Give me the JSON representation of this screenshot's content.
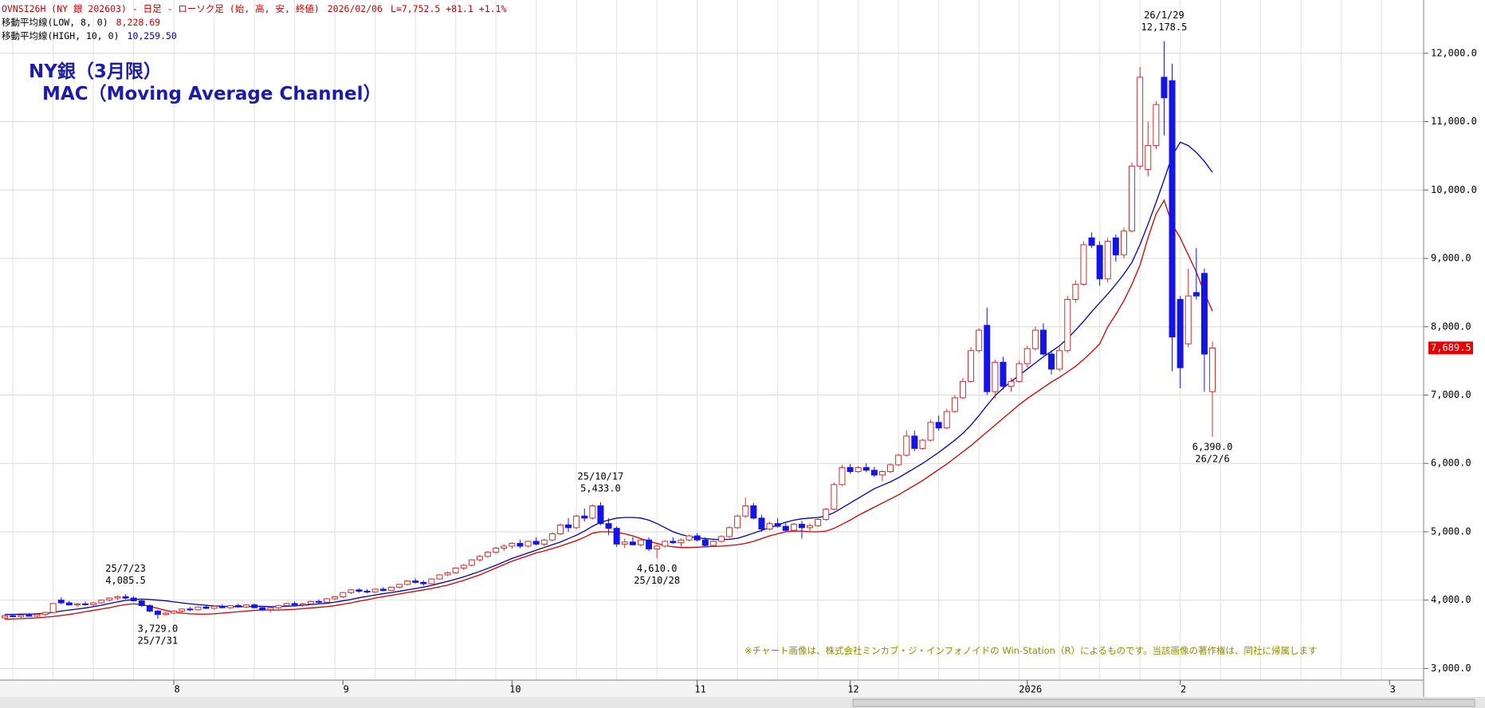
{
  "header": {
    "code": "OVNSI26H (NY 銀 202603) - 日足 - ローソク足 (始, 高, 安, 終値)",
    "date": "2026/02/06",
    "last": "L=7,752.5 +81.1 +1.1%"
  },
  "chart_data": {
    "type": "candlestick",
    "title": "NY銀（3月限）",
    "subtitle": "MAC（Moving Average Channel）",
    "note": "※チャート画像は、株式会社ミンカブ・ジ・インフォノイドの Win-Station（R）によるものです。当該画像の著作権は、同社に帰属します",
    "up_color": "#c83232",
    "down_color": "#1414e6",
    "grid": true,
    "ylim": [
      2830,
      12780
    ],
    "yticks": [
      {
        "value": 3000,
        "label": "3,000.0"
      },
      {
        "value": 4000,
        "label": "4,000.0"
      },
      {
        "value": 5000,
        "label": "5,000.0"
      },
      {
        "value": 6000,
        "label": "6,000.0"
      },
      {
        "value": 7000,
        "label": "7,000.0"
      },
      {
        "value": 8000,
        "label": "8,000.0"
      },
      {
        "value": 9000,
        "label": "9,000.0"
      },
      {
        "value": 10000,
        "label": "10,000.0"
      },
      {
        "value": 11000,
        "label": "11,000.0"
      },
      {
        "value": 12000,
        "label": "12,000.0"
      }
    ],
    "last_price_label": "7,689.5",
    "categories": [
      null,
      null,
      null,
      null,
      null,
      null,
      null,
      null,
      null,
      null,
      null,
      null,
      null,
      null,
      null,
      null,
      null,
      null,
      null,
      null,
      null,
      "8",
      null,
      null,
      null,
      null,
      null,
      null,
      null,
      null,
      null,
      null,
      null,
      null,
      null,
      null,
      null,
      null,
      null,
      null,
      null,
      null,
      "9",
      null,
      null,
      null,
      null,
      null,
      null,
      null,
      null,
      null,
      null,
      null,
      null,
      null,
      null,
      null,
      null,
      null,
      null,
      null,
      null,
      "10",
      null,
      null,
      null,
      null,
      null,
      null,
      null,
      null,
      null,
      null,
      null,
      null,
      null,
      null,
      null,
      null,
      null,
      null,
      null,
      null,
      null,
      null,
      "11",
      null,
      null,
      null,
      null,
      null,
      null,
      null,
      null,
      null,
      null,
      null,
      null,
      null,
      null,
      null,
      null,
      null,
      null,
      "12",
      null,
      null,
      null,
      null,
      null,
      null,
      null,
      null,
      null,
      null,
      null,
      null,
      null,
      null,
      null,
      null,
      null,
      null,
      null,
      null,
      null,
      "2026",
      null,
      null,
      null,
      null,
      null,
      null,
      null,
      null,
      null,
      null,
      null,
      null,
      null,
      null,
      null,
      null,
      null,
      null,
      "2",
      null,
      null,
      null,
      null,
      null,
      null,
      null,
      null,
      null,
      null,
      null,
      null,
      null,
      null,
      null,
      null,
      null,
      null,
      null,
      null,
      null,
      null,
      null,
      null,
      null,
      "3"
    ],
    "open": [
      3740,
      3770,
      3760,
      3780,
      3765,
      3790,
      3820,
      4000,
      3960,
      3930,
      3945,
      3935,
      3960,
      4000,
      4030,
      4050,
      4030,
      3990,
      3920,
      3840,
      3790,
      3810,
      3840,
      3870,
      3860,
      3900,
      3880,
      3910,
      3890,
      3920,
      3900,
      3930,
      3890,
      3860,
      3890,
      3920,
      3950,
      3930,
      3945,
      3980,
      3970,
      4020,
      4050,
      4110,
      4150,
      4130,
      4120,
      4160,
      4140,
      4190,
      4230,
      4280,
      4260,
      4240,
      4310,
      4370,
      4400,
      4470,
      4510,
      4590,
      4640,
      4700,
      4760,
      4790,
      4830,
      4790,
      4860,
      4820,
      4880,
      4970,
      5100,
      5060,
      5230,
      5200,
      5380,
      5120,
      5050,
      4820,
      4850,
      4810,
      4880,
      4750,
      4790,
      4860,
      4840,
      4880,
      4940,
      4880,
      4800,
      4860,
      4930,
      5060,
      5230,
      5380,
      5200,
      5040,
      5120,
      5080,
      5020,
      5110,
      5060,
      5090,
      5180,
      5330,
      5690,
      5940,
      5880,
      5940,
      5900,
      5830,
      5880,
      5980,
      6120,
      6400,
      6220,
      6340,
      6600,
      6520,
      6760,
      6960,
      7200,
      7650,
      8020,
      7050,
      7480,
      7130,
      7200,
      7460,
      7680,
      7950,
      7600,
      7380,
      7650,
      8400,
      8620,
      9300,
      9190,
      8700,
      9300,
      9050,
      9400,
      10350,
      10300,
      10650,
      11650,
      11600,
      8400,
      7750,
      8500,
      8780,
      7050,
      null,
      null,
      null,
      null,
      null,
      null,
      null,
      null,
      null,
      null,
      null,
      null,
      null,
      null,
      null,
      null,
      null,
      null,
      null,
      null,
      null,
      null
    ],
    "high": [
      3790,
      3800,
      3790,
      3810,
      3800,
      3830,
      3960,
      4040,
      3990,
      3960,
      3980,
      3970,
      4010,
      4040,
      4070,
      4085.5,
      4060,
      4010,
      3940,
      3860,
      3830,
      3850,
      3880,
      3900,
      3910,
      3930,
      3920,
      3940,
      3930,
      3950,
      3940,
      3950,
      3910,
      3900,
      3930,
      3960,
      3980,
      3960,
      3990,
      4010,
      4030,
      4060,
      4120,
      4160,
      4170,
      4160,
      4170,
      4190,
      4200,
      4240,
      4290,
      4320,
      4290,
      4320,
      4380,
      4420,
      4480,
      4530,
      4600,
      4660,
      4720,
      4780,
      4820,
      4850,
      4880,
      4870,
      4920,
      4900,
      4990,
      5120,
      5200,
      5250,
      5340,
      5400,
      5433,
      5200,
      5080,
      4900,
      4920,
      4900,
      4920,
      4820,
      4880,
      4920,
      4900,
      4960,
      4980,
      4920,
      4880,
      4950,
      5080,
      5250,
      5500,
      5420,
      5250,
      5150,
      5200,
      5140,
      5130,
      5160,
      5120,
      5200,
      5350,
      5720,
      5980,
      5990,
      5960,
      6000,
      5950,
      5900,
      6000,
      6140,
      6480,
      6480,
      6360,
      6640,
      6700,
      6800,
      7000,
      7250,
      7700,
      7980,
      8280,
      7520,
      7560,
      7250,
      7500,
      7720,
      8000,
      8050,
      7650,
      7700,
      8450,
      8680,
      9250,
      9380,
      9250,
      9300,
      9350,
      9450,
      10400,
      11800,
      11000,
      11300,
      12178.5,
      11850,
      8450,
      8850,
      9150,
      8850,
      7780,
      null,
      null,
      null,
      null,
      null,
      null,
      null,
      null,
      null,
      null,
      null,
      null,
      null,
      null,
      null,
      null,
      null,
      null,
      null,
      null,
      null,
      null
    ],
    "low": [
      3720,
      3750,
      3740,
      3760,
      3750,
      3770,
      3810,
      3940,
      3920,
      3900,
      3920,
      3915,
      3950,
      3980,
      4000,
      4010,
      3980,
      3900,
      3820,
      3729,
      3770,
      3790,
      3820,
      3840,
      3850,
      3870,
      3860,
      3880,
      3870,
      3890,
      3880,
      3880,
      3840,
      3820,
      3870,
      3900,
      3920,
      3900,
      3930,
      3950,
      3960,
      4000,
      4030,
      4090,
      4110,
      4100,
      4110,
      4130,
      4130,
      4170,
      4220,
      4240,
      4210,
      4230,
      4300,
      4350,
      4390,
      4440,
      4490,
      4560,
      4620,
      4680,
      4720,
      4750,
      4760,
      4770,
      4800,
      4790,
      4860,
      4950,
      5000,
      5040,
      5150,
      5180,
      5100,
      4950,
      4780,
      4760,
      4800,
      4780,
      4720,
      4610,
      4770,
      4820,
      4790,
      4860,
      4860,
      4780,
      4780,
      4840,
      4910,
      5040,
      5200,
      5180,
      5000,
      5020,
      5060,
      5000,
      5000,
      4900,
      5010,
      5070,
      5160,
      5310,
      5670,
      5850,
      5860,
      5870,
      5800,
      5740,
      5860,
      5960,
      6100,
      6180,
      6200,
      6320,
      6480,
      6500,
      6740,
      6940,
      7180,
      7620,
      7000,
      6950,
      7080,
      7050,
      7180,
      7400,
      7650,
      7580,
      7300,
      7350,
      7620,
      8350,
      8600,
      9150,
      8600,
      8650,
      8950,
      9000,
      9380,
      10300,
      10200,
      10600,
      10800,
      7350,
      7100,
      7700,
      8400,
      7050,
      6390,
      null,
      null,
      null,
      null,
      null,
      null,
      null,
      null,
      null,
      null,
      null,
      null,
      null,
      null,
      null,
      null,
      null,
      null,
      null,
      null,
      null,
      null
    ],
    "close": [
      3770,
      3760,
      3780,
      3765,
      3790,
      3820,
      3950,
      3960,
      3930,
      3945,
      3935,
      3960,
      4000,
      4030,
      4050,
      4030,
      3990,
      3920,
      3840,
      3790,
      3810,
      3840,
      3870,
      3860,
      3900,
      3880,
      3910,
      3890,
      3920,
      3900,
      3930,
      3890,
      3860,
      3890,
      3920,
      3950,
      3930,
      3945,
      3980,
      3970,
      4020,
      4050,
      4110,
      4150,
      4130,
      4120,
      4160,
      4140,
      4190,
      4230,
      4280,
      4260,
      4240,
      4310,
      4370,
      4400,
      4470,
      4510,
      4590,
      4640,
      4700,
      4760,
      4790,
      4830,
      4790,
      4860,
      4820,
      4880,
      4970,
      5100,
      5060,
      5230,
      5200,
      5380,
      5120,
      5050,
      4820,
      4850,
      4810,
      4880,
      4750,
      4790,
      4860,
      4840,
      4880,
      4940,
      4880,
      4800,
      4860,
      4930,
      5060,
      5230,
      5380,
      5200,
      5040,
      5120,
      5080,
      5020,
      5110,
      5060,
      5090,
      5180,
      5330,
      5690,
      5940,
      5880,
      5940,
      5900,
      5830,
      5880,
      5980,
      6120,
      6400,
      6220,
      6340,
      6600,
      6520,
      6760,
      6960,
      7200,
      7650,
      7950,
      7050,
      7480,
      7130,
      7200,
      7460,
      7680,
      7950,
      7600,
      7380,
      7650,
      8400,
      8620,
      9200,
      9190,
      8700,
      9250,
      9050,
      9400,
      10350,
      11650,
      10650,
      11250,
      11350,
      7850,
      7400,
      8450,
      8450,
      7600,
      7689.5,
      null,
      null,
      null,
      null,
      null,
      null,
      null,
      null,
      null,
      null,
      null,
      null,
      null,
      null,
      null,
      null,
      null,
      null,
      null,
      null,
      null,
      null
    ],
    "series": [
      {
        "name": "移動平均線(LOW, 8, 0)",
        "color": "#cc0000",
        "last_value_label": "8,228.69",
        "values": [
          3720,
          3725,
          3730,
          3735,
          3740,
          3750,
          3760,
          3775,
          3790,
          3810,
          3830,
          3850,
          3870,
          3890,
          3915,
          3935,
          3945,
          3935,
          3910,
          3880,
          3850,
          3825,
          3810,
          3800,
          3795,
          3795,
          3800,
          3810,
          3820,
          3830,
          3840,
          3850,
          3855,
          3855,
          3855,
          3860,
          3865,
          3875,
          3885,
          3895,
          3905,
          3920,
          3940,
          3960,
          3985,
          4005,
          4030,
          4050,
          4070,
          4090,
          4110,
          4130,
          4150,
          4170,
          4195,
          4220,
          4255,
          4290,
          4330,
          4370,
          4420,
          4470,
          4520,
          4570,
          4610,
          4650,
          4690,
          4720,
          4755,
          4790,
          4830,
          4870,
          4920,
          4980,
          5000,
          5000,
          4990,
          4970,
          4940,
          4900,
          4860,
          4830,
          4800,
          4780,
          4770,
          4770,
          4775,
          4780,
          4785,
          4790,
          4800,
          4810,
          4830,
          4860,
          4900,
          4940,
          4970,
          5000,
          5010,
          5010,
          5000,
          5000,
          5010,
          5050,
          5110,
          5170,
          5240,
          5300,
          5360,
          5420,
          5480,
          5540,
          5610,
          5680,
          5750,
          5830,
          5910,
          5990,
          6080,
          6170,
          6260,
          6360,
          6460,
          6560,
          6660,
          6760,
          6860,
          6950,
          7030,
          7110,
          7190,
          7260,
          7340,
          7420,
          7520,
          7630,
          7750,
          8000,
          8180,
          8380,
          8620,
          8900,
          9300,
          9650,
          9850,
          9500,
          9300,
          9050,
          8800,
          8500,
          8228.69,
          null,
          null,
          null,
          null,
          null,
          null,
          null,
          null,
          null,
          null,
          null,
          null,
          null,
          null,
          null,
          null,
          null,
          null,
          null,
          null,
          null,
          null
        ]
      },
      {
        "name": "移動平均線(HIGH, 10, 0)",
        "color": "#0000b4",
        "last_value_label": "10,259.50",
        "values": [
          3790,
          3790,
          3795,
          3795,
          3800,
          3805,
          3820,
          3840,
          3855,
          3870,
          3885,
          3905,
          3925,
          3950,
          3975,
          3995,
          4010,
          4015,
          4010,
          4000,
          3990,
          3975,
          3960,
          3945,
          3935,
          3925,
          3915,
          3910,
          3905,
          3905,
          3905,
          3910,
          3910,
          3905,
          3905,
          3910,
          3915,
          3925,
          3935,
          3945,
          3955,
          3970,
          3990,
          4010,
          4035,
          4055,
          4075,
          4095,
          4110,
          4130,
          4150,
          4170,
          4190,
          4215,
          4245,
          4275,
          4305,
          4340,
          4380,
          4420,
          4465,
          4510,
          4560,
          4610,
          4650,
          4690,
          4730,
          4770,
          4810,
          4850,
          4900,
          4950,
          5010,
          5080,
          5140,
          5170,
          5200,
          5210,
          5210,
          5200,
          5170,
          5120,
          5060,
          5000,
          4960,
          4930,
          4910,
          4900,
          4890,
          4885,
          4890,
          4905,
          4940,
          4980,
          5020,
          5060,
          5100,
          5140,
          5170,
          5190,
          5200,
          5210,
          5230,
          5280,
          5350,
          5420,
          5490,
          5560,
          5630,
          5680,
          5730,
          5790,
          5860,
          5930,
          6000,
          6080,
          6160,
          6250,
          6340,
          6440,
          6560,
          6700,
          6850,
          6990,
          7100,
          7200,
          7290,
          7380,
          7470,
          7560,
          7640,
          7720,
          7830,
          7950,
          8080,
          8220,
          8350,
          8480,
          8620,
          8770,
          8940,
          9200,
          9500,
          9820,
          10150,
          10500,
          10700,
          10650,
          10550,
          10420,
          10259.5,
          null,
          null,
          null,
          null,
          null,
          null,
          null,
          null,
          null,
          null,
          null,
          null,
          null,
          null,
          null,
          null,
          null,
          null,
          null,
          null,
          null,
          null
        ]
      }
    ],
    "annotations": [
      {
        "date": "25/7/23",
        "label": "4,085.5",
        "value": 4085.5
      },
      {
        "date": "25/7/31",
        "label": "3,729.0",
        "value": 3729
      },
      {
        "date": "25/10/17",
        "label": "5,433.0",
        "value": 5433
      },
      {
        "date": "25/10/28",
        "label": "4,610.0",
        "value": 4610
      },
      {
        "date": "26/1/29",
        "label": "12,178.5",
        "value": 12178.5
      },
      {
        "date": "26/2/6",
        "label": "6,390.0",
        "value": 6390
      }
    ]
  }
}
